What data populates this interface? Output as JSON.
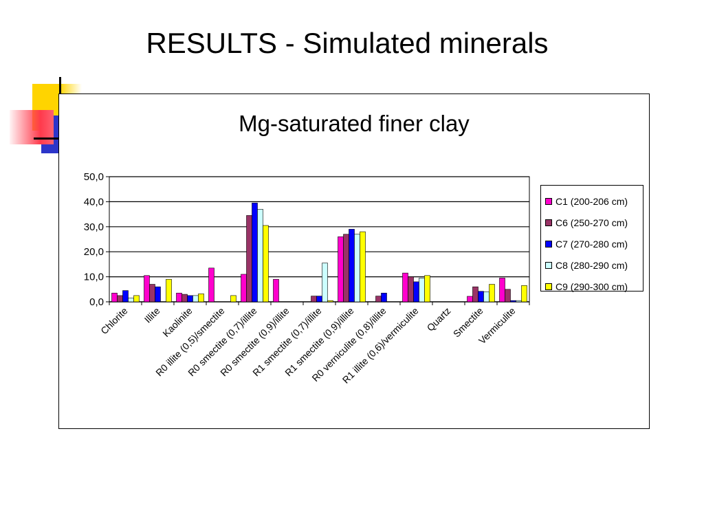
{
  "slide": {
    "title": "RESULTS - Simulated minerals"
  },
  "chart_data": {
    "type": "bar",
    "title": "Mg-saturated finer clay",
    "xlabel": "",
    "ylabel": "",
    "ylim": [
      0,
      50
    ],
    "yticks": [
      "0,0",
      "10,0",
      "20,0",
      "30,0",
      "40,0",
      "50,0"
    ],
    "grid": true,
    "legend_position": "right",
    "categories": [
      "Chlorite",
      "Illite",
      "Kaolinite",
      "R0 illite (0,5)/smectite",
      "R0 smectite (0,7)/illite",
      "R0 smectite (0,9)/illite",
      "R1 smectite (0,7)/illite",
      "R1 smectite (0,9)/illite",
      "R0 verniculite (0,8)/illite",
      "R1 illite (0,6)/vermiculite",
      "Quartz",
      "Smectite",
      "Vermiculite"
    ],
    "series": [
      {
        "name": "C1 (200-206 cm)",
        "color": "#ff00cc",
        "values": [
          3.5,
          10.5,
          3.5,
          13.5,
          11.0,
          9.0,
          0.0,
          26.0,
          0.0,
          11.5,
          0.0,
          2.2,
          9.5
        ]
      },
      {
        "name": "C6 (250-270 cm)",
        "color": "#993366",
        "values": [
          2.5,
          7.0,
          3.0,
          0.0,
          34.5,
          0.0,
          2.3,
          27.0,
          2.3,
          10.0,
          0.0,
          6.0,
          5.0
        ]
      },
      {
        "name": "C7 (270-280 cm)",
        "color": "#0000ff",
        "values": [
          4.5,
          6.0,
          2.5,
          0.0,
          39.5,
          0.0,
          2.3,
          29.0,
          3.5,
          8.0,
          0.0,
          4.2,
          0.5
        ]
      },
      {
        "name": "C8 (280-290 cm)",
        "color": "#ccffff",
        "values": [
          1.5,
          0.0,
          2.5,
          0.0,
          37.0,
          0.0,
          15.5,
          27.0,
          0.0,
          9.5,
          0.0,
          4.0,
          0.5
        ]
      },
      {
        "name": "C9 (290-300 cm)",
        "color": "#ffff00",
        "values": [
          2.5,
          9.0,
          3.2,
          2.5,
          30.5,
          0.0,
          0.5,
          28.0,
          0.0,
          10.5,
          0.0,
          7.0,
          6.5
        ]
      }
    ]
  }
}
